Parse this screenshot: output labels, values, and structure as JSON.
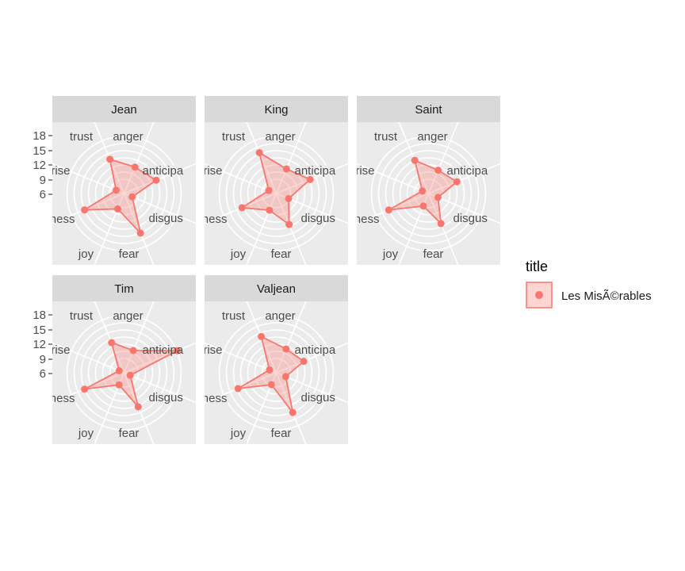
{
  "chart_data": {
    "type": "radar",
    "axes": [
      "trust",
      "anger",
      "anticipation",
      "disgust",
      "fear",
      "joy",
      "sadness",
      "surprise"
    ],
    "axis_labels_shown": [
      "trust",
      "anger",
      "anticipa",
      "disgus",
      "fear",
      "joy",
      "dness",
      "rprise"
    ],
    "r_ticks": [
      6,
      9,
      12,
      15,
      18
    ],
    "r_tick_labels": [
      "6",
      "9",
      "12",
      "15",
      "18"
    ],
    "legend": {
      "title": "title",
      "entries": [
        "Les MisÃ©rables"
      ],
      "placement": "right"
    },
    "colors": {
      "series": "#F8766D",
      "fill": "#F8766D",
      "panel_bg": "#EBEBEB",
      "strip_bg": "#D9D9D9",
      "grid": "#FFFFFF"
    },
    "panels": [
      {
        "name": "Jean",
        "values": [
          15.6,
          12.0,
          14.6,
          3.7,
          18.0,
          7.0,
          18.0,
          3.6
        ]
      },
      {
        "name": "King",
        "values": [
          18.6,
          11.2,
          15.4,
          5.6,
          14.1,
          7.6,
          15.6,
          3.4
        ]
      },
      {
        "name": "Saint",
        "values": [
          15.1,
          10.6,
          12.9,
          4.3,
          13.7,
          5.7,
          18.1,
          2.8
        ]
      },
      {
        "name": "Tim",
        "values": [
          13.7,
          10.1,
          24.2,
          2.8,
          15.5,
          5.5,
          18.0,
          2.2
        ]
      },
      {
        "name": "Valjean",
        "values": [
          16.5,
          10.8,
          12.5,
          4.3,
          18.1,
          5.4,
          17.4,
          3.1
        ]
      }
    ]
  }
}
